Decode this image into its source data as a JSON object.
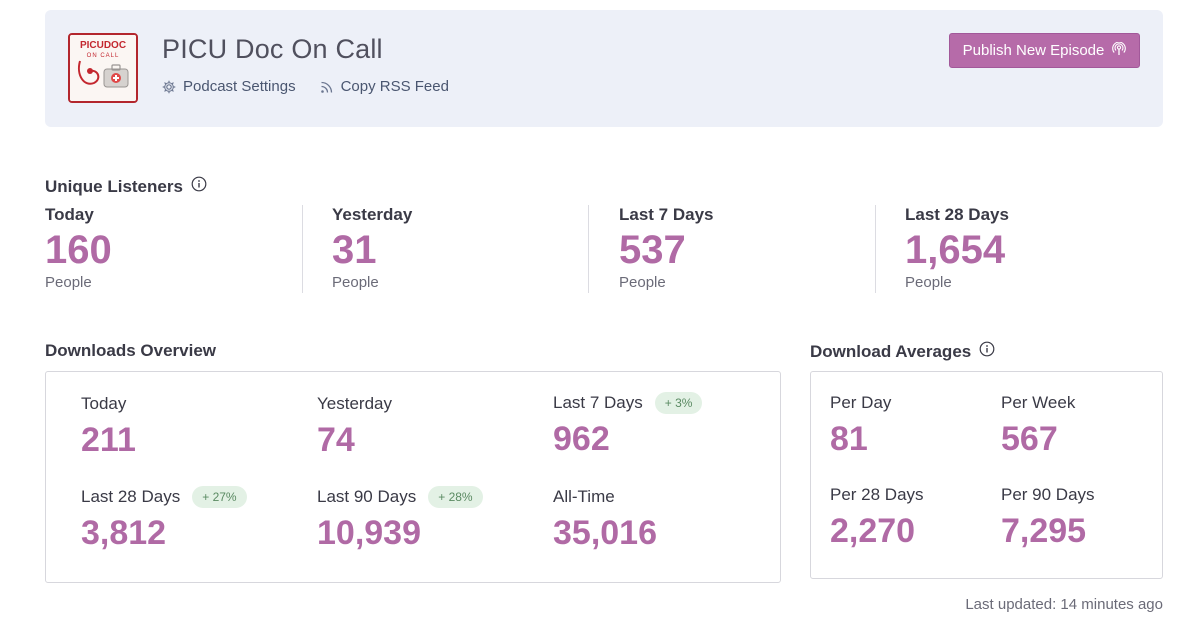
{
  "header": {
    "title": "PICU Doc On Call",
    "logo_text_top": "PICUDOC",
    "logo_text_bottom": "ON CALL",
    "links": [
      {
        "label": "Podcast Settings",
        "icon": "gear-icon"
      },
      {
        "label": "Copy RSS Feed",
        "icon": "rss-icon"
      }
    ],
    "publish_label": "Publish New Episode",
    "publish_icon": "podcast-icon",
    "accent_color": "#b66ba9"
  },
  "unique_listeners": {
    "title": "Unique Listeners",
    "stats": [
      {
        "label": "Today",
        "value": "160",
        "unit": "People"
      },
      {
        "label": "Yesterday",
        "value": "31",
        "unit": "People"
      },
      {
        "label": "Last 7 Days",
        "value": "537",
        "unit": "People"
      },
      {
        "label": "Last 28 Days",
        "value": "1,654",
        "unit": "People"
      }
    ]
  },
  "downloads_overview": {
    "title": "Downloads Overview",
    "stats": [
      {
        "label": "Today",
        "value": "211",
        "badge": ""
      },
      {
        "label": "Yesterday",
        "value": "74",
        "badge": ""
      },
      {
        "label": "Last 7 Days",
        "value": "962",
        "badge": "+ 3%"
      },
      {
        "label": "Last 28 Days",
        "value": "3,812",
        "badge": "+ 27%"
      },
      {
        "label": "Last 90 Days",
        "value": "10,939",
        "badge": "+ 28%"
      },
      {
        "label": "All-Time",
        "value": "35,016",
        "badge": ""
      }
    ]
  },
  "download_averages": {
    "title": "Download Averages",
    "stats": [
      {
        "label": "Per Day",
        "value": "81"
      },
      {
        "label": "Per Week",
        "value": "567"
      },
      {
        "label": "Per 28 Days",
        "value": "2,270"
      },
      {
        "label": "Per 90 Days",
        "value": "7,295"
      }
    ]
  },
  "footer": {
    "last_updated": "Last updated: 14 minutes ago"
  },
  "colors": {
    "value": "#b06aa5",
    "badge_bg": "#e3f1e5",
    "badge_text": "#5a8a62"
  }
}
